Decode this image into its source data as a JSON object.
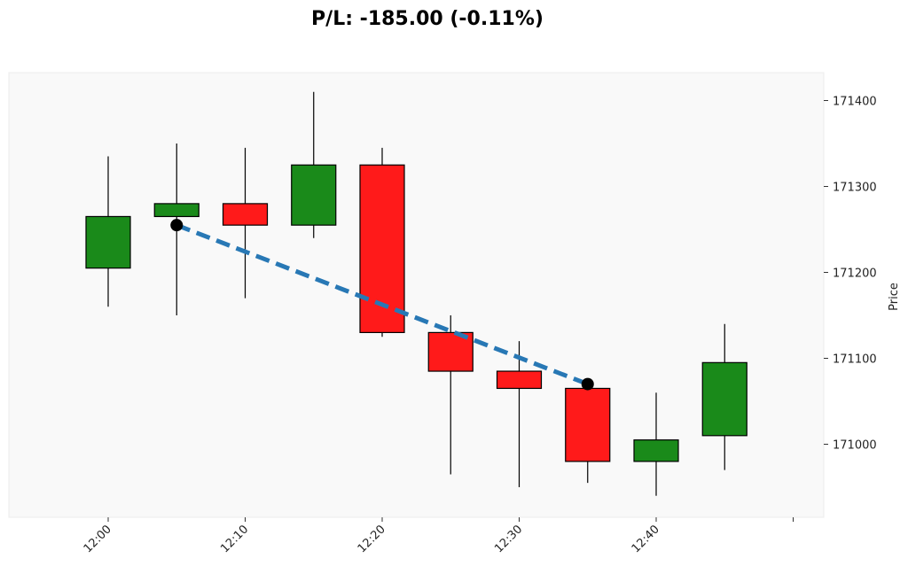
{
  "chart_data": {
    "type": "candlestick",
    "title": "P/L: -185.00 (-0.11%)",
    "xlabel": "",
    "ylabel": "Price",
    "ylim": [
      170935,
      171435
    ],
    "y_ticks": [
      171000,
      171100,
      171200,
      171300,
      171400
    ],
    "x_tick_labels": [
      "12:00",
      "12:10",
      "12:20",
      "12:30",
      "12:40",
      ""
    ],
    "x_tick_minutes": [
      0,
      10,
      20,
      30,
      40,
      50
    ],
    "grid": false,
    "colors": {
      "up": "#1a8a1a",
      "down": "#ff1a1a",
      "trade_line": "#2878b5",
      "marker": "#000000",
      "plot_background": "#f9f9f9"
    },
    "candles": [
      {
        "time": "12:00",
        "open": 171205,
        "high": 171335,
        "low": 171160,
        "close": 171265
      },
      {
        "time": "12:05",
        "open": 171265,
        "high": 171350,
        "low": 171150,
        "close": 171280
      },
      {
        "time": "12:10",
        "open": 171280,
        "high": 171345,
        "low": 171170,
        "close": 171255
      },
      {
        "time": "12:15",
        "open": 171255,
        "high": 171410,
        "low": 171240,
        "close": 171325
      },
      {
        "time": "12:20",
        "open": 171325,
        "high": 171345,
        "low": 171125,
        "close": 171130
      },
      {
        "time": "12:25",
        "open": 171130,
        "high": 171150,
        "low": 170965,
        "close": 171085
      },
      {
        "time": "12:30",
        "open": 171085,
        "high": 171120,
        "low": 170950,
        "close": 171065
      },
      {
        "time": "12:35",
        "open": 171065,
        "high": 171070,
        "low": 170955,
        "close": 170980
      },
      {
        "time": "12:40",
        "open": 170980,
        "high": 171060,
        "low": 170940,
        "close": 171005
      },
      {
        "time": "12:45",
        "open": 171010,
        "high": 171140,
        "low": 170970,
        "close": 171095
      }
    ],
    "trade": {
      "entry": {
        "time": "12:05",
        "price": 171255
      },
      "exit": {
        "time": "12:35",
        "price": 171070
      }
    }
  }
}
